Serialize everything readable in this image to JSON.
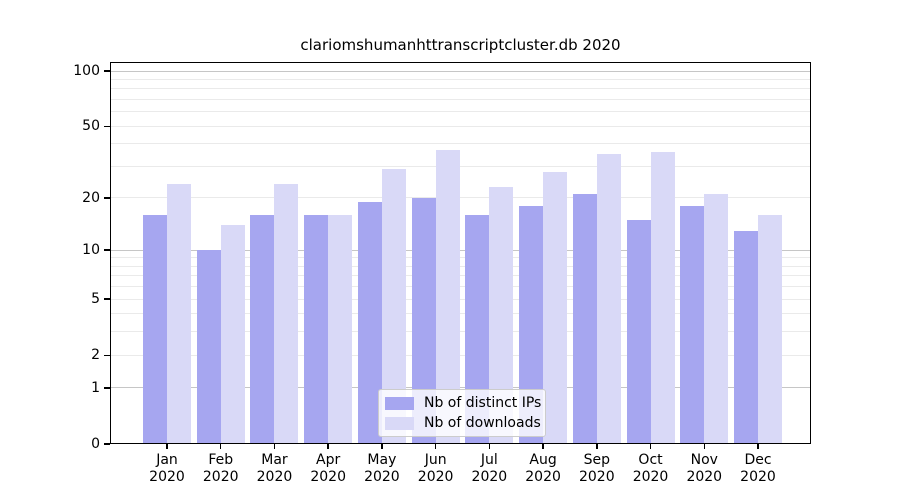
{
  "chart_data": {
    "type": "bar",
    "title": "clariomshumanhttranscriptcluster.db 2020",
    "scale": "log1p",
    "grid": true,
    "legend_position": "lower center",
    "categories": [
      "Jan",
      "Feb",
      "Mar",
      "Apr",
      "May",
      "Jun",
      "Jul",
      "Aug",
      "Sep",
      "Oct",
      "Nov",
      "Dec"
    ],
    "year": "2020",
    "series": [
      {
        "name": "Nb of distinct IPs",
        "color": "#a6a6f0",
        "values": [
          16,
          10,
          16,
          16,
          19,
          20,
          16,
          18,
          21,
          15,
          18,
          13
        ]
      },
      {
        "name": "Nb of downloads",
        "color": "#d9d9f7",
        "values": [
          24,
          14,
          24,
          16,
          29,
          37,
          23,
          28,
          35,
          36,
          21,
          16
        ]
      }
    ],
    "yticks": [
      0,
      1,
      2,
      5,
      10,
      20,
      50,
      100
    ],
    "decade_gridlines": [
      1,
      10,
      100
    ],
    "minor_gridlines": [
      2,
      3,
      4,
      5,
      6,
      7,
      8,
      9,
      20,
      30,
      40,
      50,
      60,
      70,
      80,
      90
    ],
    "ylim": [
      0,
      113
    ]
  },
  "colors": {
    "frame": "#000000",
    "grid_decade": "#c6c6c6",
    "grid_minor": "#eaeaea",
    "background": "#ffffff",
    "legend_border": "#cccccc"
  }
}
